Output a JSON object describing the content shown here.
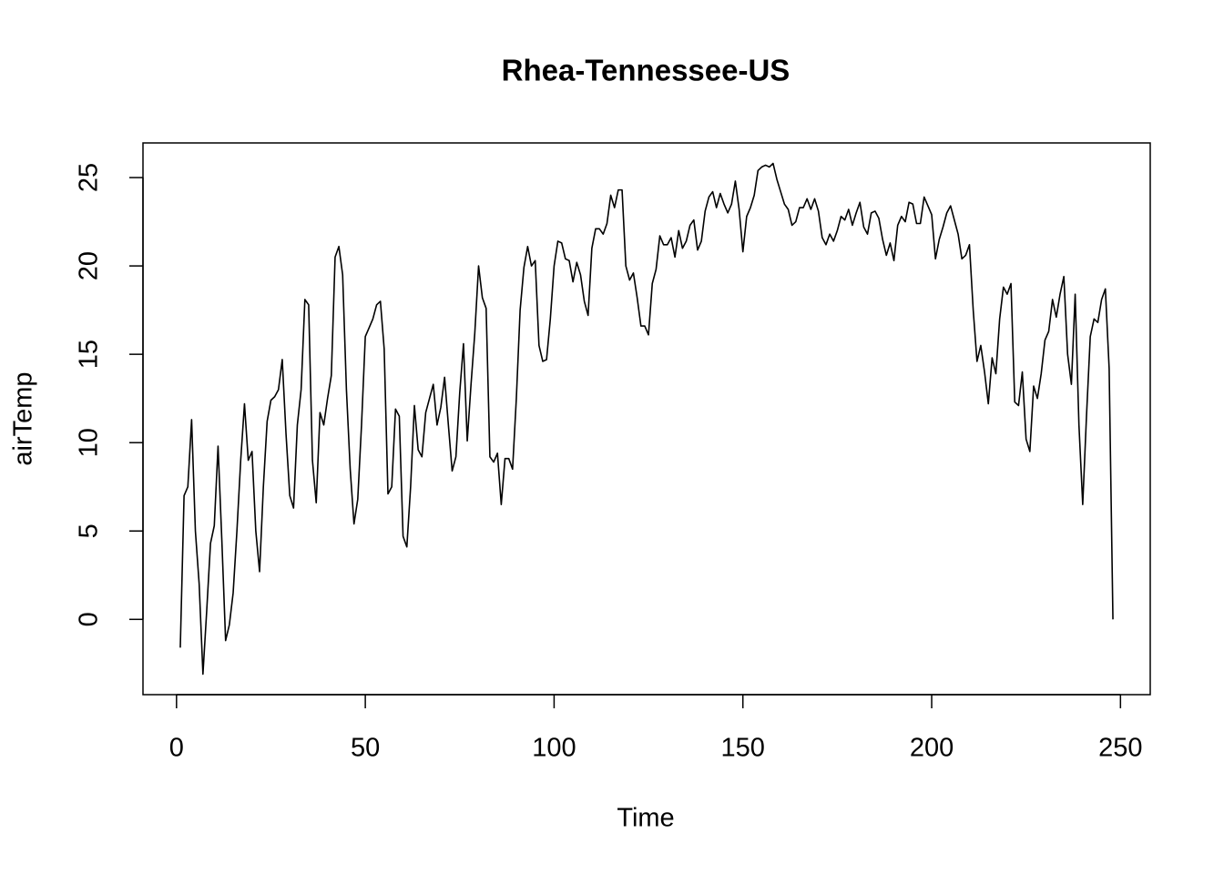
{
  "chart_data": {
    "type": "line",
    "title": "Rhea-Tennessee-US",
    "x_label": "Time",
    "y_label": "airTemp",
    "x": [
      1,
      2,
      3,
      4,
      5,
      6,
      7,
      8,
      9,
      10,
      11,
      12,
      13,
      14,
      15,
      16,
      17,
      18,
      19,
      20,
      21,
      22,
      23,
      24,
      25,
      26,
      27,
      28,
      29,
      30,
      31,
      32,
      33,
      34,
      35,
      36,
      37,
      38,
      39,
      40,
      41,
      42,
      43,
      44,
      45,
      46,
      47,
      48,
      49,
      50,
      51,
      52,
      53,
      54,
      55,
      56,
      57,
      58,
      59,
      60,
      61,
      62,
      63,
      64,
      65,
      66,
      67,
      68,
      69,
      70,
      71,
      72,
      73,
      74,
      75,
      76,
      77,
      78,
      79,
      80,
      81,
      82,
      83,
      84,
      85,
      86,
      87,
      88,
      89,
      90,
      91,
      92,
      93,
      94,
      95,
      96,
      97,
      98,
      99,
      100,
      101,
      102,
      103,
      104,
      105,
      106,
      107,
      108,
      109,
      110,
      111,
      112,
      113,
      114,
      115,
      116,
      117,
      118,
      119,
      120,
      121,
      122,
      123,
      124,
      125,
      126,
      127,
      128,
      129,
      130,
      131,
      132,
      133,
      134,
      135,
      136,
      137,
      138,
      139,
      140,
      141,
      142,
      143,
      144,
      145,
      146,
      147,
      148,
      149,
      150,
      151,
      152,
      153,
      154,
      155,
      156,
      157,
      158,
      159,
      160,
      161,
      162,
      163,
      164,
      165,
      166,
      167,
      168,
      169,
      170,
      171,
      172,
      173,
      174,
      175,
      176,
      177,
      178,
      179,
      180,
      181,
      182,
      183,
      184,
      185,
      186,
      187,
      188,
      189,
      190,
      191,
      192,
      193,
      194,
      195,
      196,
      197,
      198,
      199,
      200,
      201,
      202,
      203,
      204,
      205,
      206,
      207,
      208,
      209,
      210,
      211,
      212,
      213,
      214,
      215,
      216,
      217,
      218,
      219,
      220,
      221,
      222,
      223,
      224,
      225,
      226,
      227,
      228,
      229,
      230,
      231,
      232,
      233,
      234,
      235,
      236,
      237,
      238,
      239,
      240,
      241,
      242,
      243,
      244,
      245,
      246,
      247,
      248
    ],
    "values": [
      -1.6,
      7.0,
      7.5,
      11.3,
      5.0,
      2.0,
      -3.1,
      0.5,
      4.3,
      5.3,
      9.8,
      4.5,
      -1.2,
      -0.3,
      1.5,
      5.0,
      9.0,
      12.2,
      9.0,
      9.5,
      5.0,
      2.7,
      7.5,
      11.2,
      12.4,
      12.6,
      13.0,
      14.7,
      10.5,
      7.0,
      6.3,
      11.0,
      13.0,
      18.1,
      17.8,
      9.0,
      6.6,
      11.7,
      11.0,
      12.5,
      13.8,
      20.5,
      21.1,
      19.5,
      13.0,
      8.5,
      5.4,
      6.8,
      11.0,
      16.0,
      16.5,
      17.0,
      17.8,
      18.0,
      15.3,
      7.1,
      7.5,
      11.9,
      11.5,
      4.7,
      4.1,
      7.5,
      12.1,
      9.6,
      9.2,
      11.7,
      12.5,
      13.3,
      11.0,
      12.0,
      13.7,
      11.0,
      8.4,
      9.2,
      12.8,
      15.6,
      10.1,
      13.3,
      16.2,
      20.0,
      18.2,
      17.6,
      9.2,
      8.9,
      9.4,
      6.5,
      9.1,
      9.1,
      8.5,
      12.5,
      17.5,
      19.9,
      21.1,
      20.0,
      20.3,
      15.5,
      14.6,
      14.7,
      17.0,
      20.0,
      21.4,
      21.3,
      20.4,
      20.3,
      19.1,
      20.2,
      19.5,
      18.0,
      17.2,
      21.0,
      22.1,
      22.1,
      21.8,
      22.4,
      24.0,
      23.3,
      24.3,
      24.3,
      20.0,
      19.2,
      19.6,
      18.2,
      16.6,
      16.6,
      16.1,
      19.0,
      19.8,
      21.7,
      21.2,
      21.2,
      21.6,
      20.5,
      22.0,
      21.0,
      21.4,
      22.3,
      22.6,
      20.9,
      21.4,
      23.1,
      23.9,
      24.2,
      23.3,
      24.1,
      23.5,
      23.0,
      23.5,
      24.8,
      23.2,
      20.8,
      22.8,
      23.3,
      24.0,
      25.4,
      25.6,
      25.7,
      25.6,
      25.8,
      24.9,
      24.2,
      23.5,
      23.2,
      22.3,
      22.5,
      23.3,
      23.3,
      23.8,
      23.2,
      23.8,
      23.1,
      21.6,
      21.2,
      21.8,
      21.4,
      22.0,
      22.8,
      22.6,
      23.2,
      22.3,
      23.0,
      23.6,
      22.2,
      21.8,
      23.0,
      23.1,
      22.7,
      21.5,
      20.6,
      21.3,
      20.3,
      22.3,
      22.8,
      22.5,
      23.6,
      23.5,
      22.4,
      22.4,
      23.9,
      23.4,
      22.9,
      20.4,
      21.5,
      22.2,
      23.0,
      23.4,
      22.6,
      21.8,
      20.4,
      20.6,
      21.2,
      17.5,
      14.6,
      15.5,
      14.0,
      12.2,
      14.8,
      13.9,
      17.0,
      18.8,
      18.4,
      19.0,
      12.3,
      12.1,
      14.0,
      10.2,
      9.5,
      13.2,
      12.5,
      13.9,
      15.8,
      16.3,
      18.1,
      17.1,
      18.4,
      19.4,
      15.0,
      13.3,
      18.4,
      11.0,
      6.5,
      11.5,
      16.0,
      17.0,
      16.8,
      18.1,
      18.7,
      14.2,
      0
    ],
    "color": "#000000",
    "xlim": [
      -8.88,
      257.88
    ],
    "xticks": [
      0,
      50,
      100,
      150,
      200,
      250
    ],
    "ylim": [
      -4.26,
      26.96
    ],
    "yticks": [
      0,
      5,
      10,
      15,
      20,
      25
    ]
  }
}
